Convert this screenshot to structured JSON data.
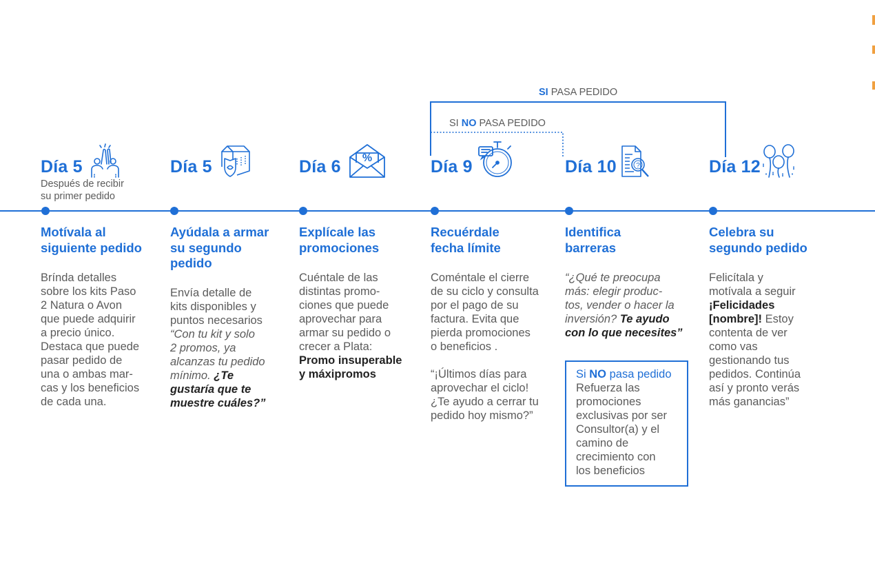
{
  "bracket_si": {
    "prefix": "SI",
    "rest": " PASA PEDIDO"
  },
  "bracket_no": {
    "prefix": "SI ",
    "strong": "NO",
    "rest": " PASA PEDIDO"
  },
  "colors": {
    "accent": "#1f6fd6",
    "text": "#5b5b5b",
    "dark": "#222222"
  },
  "steps": [
    {
      "day": "Día 5",
      "icon": "high-five-icon",
      "subnote": [
        "Después de recibir",
        "su primer pedido"
      ],
      "heading": [
        "Motívala al",
        "siguiente pedido"
      ],
      "body": [
        "Brínda detalles",
        "sobre los kits Paso",
        "2 Natura o Avon",
        "que puede adquirir",
        "a precio único.",
        "Destaca que puede",
        "pasar pedido de",
        "una o ambas mar-",
        "cas y los beneficios",
        "de cada una."
      ]
    },
    {
      "day": "Día 5",
      "icon": "box-shield-icon",
      "heading": [
        "Ayúdala a armar",
        "su segundo",
        "pedido"
      ],
      "body": [
        "Envía detalle de",
        "kits disponibles y",
        "puntos necesarios"
      ],
      "quote": [
        "“Con tu kit y solo",
        "2 promos, ya",
        "alcanzas tu pedido",
        "mínimo."
      ],
      "quote_bold": [
        "¿Te",
        "gustaría que te",
        "muestre cuáles?”"
      ]
    },
    {
      "day": "Día 6",
      "icon": "envelope-percent-icon",
      "heading": [
        "Explícale las",
        "promociones"
      ],
      "body": [
        "Cuéntale de las",
        "distintas promo-",
        "ciones que puede",
        "aprovechar para",
        "armar su pedido o",
        "crecer a Plata:"
      ],
      "bold": [
        "Promo insuperable",
        "y máxipromos"
      ]
    },
    {
      "day": "Día 9",
      "icon": "stopwatch-icon",
      "heading": [
        "Recuérdale",
        "fecha límite"
      ],
      "body": [
        "Coméntale el cierre",
        "de su ciclo y consulta",
        "por el pago de su",
        "factura. Evita que",
        "pierda promociones",
        "o beneficios ."
      ],
      "quote": [
        "“¡Últimos días para",
        "aprovechar el ciclo!",
        "¿Te ayudo a cerrar tu",
        "pedido hoy mismo?”"
      ]
    },
    {
      "day": "Día 10",
      "icon": "document-search-icon",
      "heading": [
        "Identifica",
        "barreras"
      ],
      "quote": [
        "“¿Qué te preocupa",
        "más: elegir produc-",
        "tos, vender o hacer la",
        "inversión?"
      ],
      "quote_bold": [
        "Te ayudo",
        "con lo que necesites”"
      ],
      "callout": {
        "title_prefix": "Si ",
        "title_strong": "NO",
        "title_rest": " pasa pedido",
        "lines": [
          "Refuerza las",
          "promociones",
          "exclusivas por ser",
          "Consultor(a) y el",
          "camino de",
          "crecimiento con",
          "los beneficios"
        ]
      }
    },
    {
      "day": "Día 12",
      "icon": "balloons-icon",
      "heading": [
        "Celebra su",
        "segundo pedido"
      ],
      "body": [
        "Felicítala y",
        "motívala a seguir"
      ],
      "bold": [
        "¡Felicidades",
        "[nombre]!"
      ],
      "body2": [
        "Estoy",
        "contenta de ver",
        "como vas",
        "gestionando tus",
        "pedidos. Continúa",
        "así y pronto verás",
        "más ganancias”"
      ]
    }
  ]
}
